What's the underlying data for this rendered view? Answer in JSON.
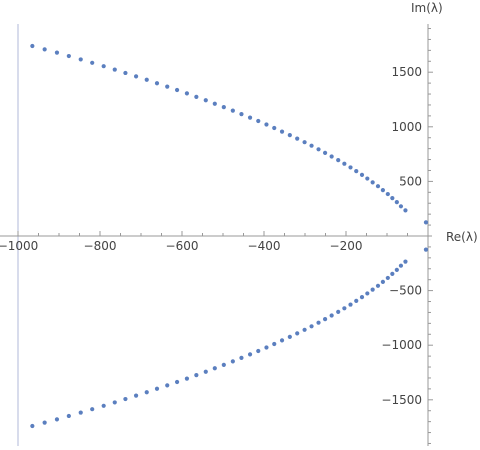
{
  "chart_data": {
    "type": "scatter",
    "title": "",
    "xlabel": "Re(λ)",
    "ylabel": "Im(λ)",
    "xlim": [
      -1000,
      0
    ],
    "ylim": [
      -1950,
      1950
    ],
    "x_ticks": [
      -1000,
      -800,
      -600,
      -400,
      -200
    ],
    "y_ticks": [
      1500,
      1000,
      500,
      -500,
      -1000,
      -1500
    ],
    "grid": false,
    "marker_color": "#5b7fbf",
    "axis_color": "#999999",
    "series": [
      {
        "x": [
          -965,
          -935,
          -905,
          -876,
          -847,
          -819,
          -791,
          -764,
          -738,
          -712,
          -686,
          -661,
          -636,
          -612,
          -588,
          -565,
          -542,
          -520,
          -498,
          -476,
          -455,
          -434,
          -414,
          -394,
          -375,
          -356,
          -337,
          -319,
          -301,
          -284,
          -267,
          -251,
          -235,
          -219,
          -204,
          -189,
          -175,
          -161,
          -148,
          -135,
          -122,
          -110,
          -98,
          -87,
          -76,
          -66,
          -55,
          -5
        ],
        "y": [
          1740,
          1709,
          1679,
          1648,
          1617,
          1586,
          1555,
          1524,
          1493,
          1462,
          1431,
          1399,
          1368,
          1337,
          1306,
          1274,
          1243,
          1211,
          1180,
          1148,
          1116,
          1084,
          1053,
          1021,
          989,
          956,
          924,
          892,
          859,
          827,
          794,
          761,
          728,
          695,
          662,
          628,
          594,
          560,
          526,
          491,
          456,
          420,
          384,
          347,
          310,
          272,
          235,
          125
        ]
      },
      {
        "x": [
          -965,
          -935,
          -905,
          -876,
          -847,
          -819,
          -791,
          -764,
          -738,
          -712,
          -686,
          -661,
          -636,
          -612,
          -588,
          -565,
          -542,
          -520,
          -498,
          -476,
          -455,
          -434,
          -414,
          -394,
          -375,
          -356,
          -337,
          -319,
          -301,
          -284,
          -267,
          -251,
          -235,
          -219,
          -204,
          -189,
          -175,
          -161,
          -148,
          -135,
          -122,
          -110,
          -98,
          -87,
          -76,
          -66,
          -55,
          -5
        ],
        "y": [
          -1740,
          -1709,
          -1679,
          -1648,
          -1617,
          -1586,
          -1555,
          -1524,
          -1493,
          -1462,
          -1431,
          -1399,
          -1368,
          -1337,
          -1306,
          -1274,
          -1243,
          -1211,
          -1180,
          -1148,
          -1116,
          -1084,
          -1053,
          -1021,
          -989,
          -956,
          -924,
          -892,
          -859,
          -827,
          -794,
          -761,
          -728,
          -695,
          -662,
          -628,
          -594,
          -560,
          -526,
          -491,
          -456,
          -420,
          -384,
          -347,
          -310,
          -272,
          -235,
          -125
        ]
      }
    ]
  }
}
